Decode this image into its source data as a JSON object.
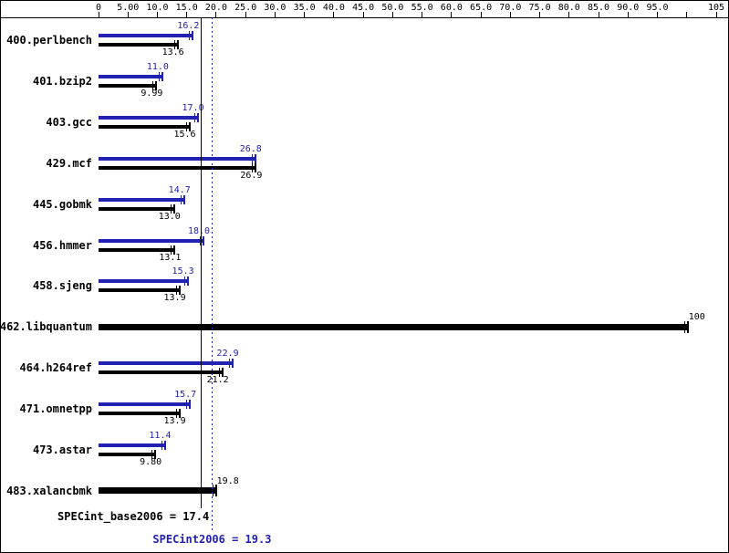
{
  "chart_data": {
    "type": "bar",
    "orientation": "horizontal",
    "title": "",
    "axis": {
      "min": 0,
      "max": 105,
      "grid": false,
      "position": "top",
      "ticks": [
        {
          "value": 0,
          "label": "0"
        },
        {
          "value": 5,
          "label": "5.00"
        },
        {
          "value": 10,
          "label": "10.0"
        },
        {
          "value": 15,
          "label": "15.0"
        },
        {
          "value": 20,
          "label": "20.0"
        },
        {
          "value": 25,
          "label": "25.0"
        },
        {
          "value": 30,
          "label": "30.0"
        },
        {
          "value": 35,
          "label": "35.0"
        },
        {
          "value": 40,
          "label": "40.0"
        },
        {
          "value": 45,
          "label": "45.0"
        },
        {
          "value": 50,
          "label": "50.0"
        },
        {
          "value": 55,
          "label": "55.0"
        },
        {
          "value": 60,
          "label": "60.0"
        },
        {
          "value": 65,
          "label": "65.0"
        },
        {
          "value": 70,
          "label": "70.0"
        },
        {
          "value": 75,
          "label": "75.0"
        },
        {
          "value": 80,
          "label": "80.0"
        },
        {
          "value": 85,
          "label": "85.0"
        },
        {
          "value": 90,
          "label": "90.0"
        },
        {
          "value": 95,
          "label": "95.0"
        },
        {
          "value": 100,
          "label": ""
        },
        {
          "value": 105,
          "label": "105"
        }
      ]
    },
    "series": [
      {
        "name": "SPECint2006 (peak)",
        "color": "#2222b2"
      },
      {
        "name": "SPECint_base2006 (base)",
        "color": "#000000"
      }
    ],
    "benchmarks": [
      {
        "name": "400.perlbench",
        "single": false,
        "peak": 16.2,
        "peak_label": "16.2",
        "base": 13.6,
        "base_label": "13.6"
      },
      {
        "name": "401.bzip2",
        "single": false,
        "peak": 11.0,
        "peak_label": "11.0",
        "base": 9.99,
        "base_label": "9.99"
      },
      {
        "name": "403.gcc",
        "single": false,
        "peak": 17.0,
        "peak_label": "17.0",
        "base": 15.6,
        "base_label": "15.6"
      },
      {
        "name": "429.mcf",
        "single": false,
        "peak": 26.8,
        "peak_label": "26.8",
        "base": 26.9,
        "base_label": "26.9"
      },
      {
        "name": "445.gobmk",
        "single": false,
        "peak": 14.7,
        "peak_label": "14.7",
        "base": 13.0,
        "base_label": "13.0"
      },
      {
        "name": "456.hmmer",
        "single": false,
        "peak": 18.0,
        "peak_label": "18.0",
        "base": 13.1,
        "base_label": "13.1"
      },
      {
        "name": "458.sjeng",
        "single": false,
        "peak": 15.3,
        "peak_label": "15.3",
        "base": 13.9,
        "base_label": "13.9"
      },
      {
        "name": "462.libquantum",
        "single": true,
        "value": 100,
        "value_label": "100"
      },
      {
        "name": "464.h264ref",
        "single": false,
        "peak": 22.9,
        "peak_label": "22.9",
        "base": 21.2,
        "base_label": "21.2"
      },
      {
        "name": "471.omnetpp",
        "single": false,
        "peak": 15.7,
        "peak_label": "15.7",
        "base": 13.9,
        "base_label": "13.9"
      },
      {
        "name": "473.astar",
        "single": false,
        "peak": 11.4,
        "peak_label": "11.4",
        "base": 9.8,
        "base_label": "9.80"
      },
      {
        "name": "483.xalancbmk",
        "single": true,
        "value": 19.8,
        "value_label": "19.8"
      }
    ],
    "medians": {
      "base": {
        "value": 17.4,
        "label": "SPECint_base2006 = 17.4",
        "color": "#000000",
        "style": "solid"
      },
      "peak": {
        "value": 19.3,
        "label": "SPECint2006 = 19.3",
        "color": "#2222b2",
        "style": "dotted"
      }
    }
  }
}
